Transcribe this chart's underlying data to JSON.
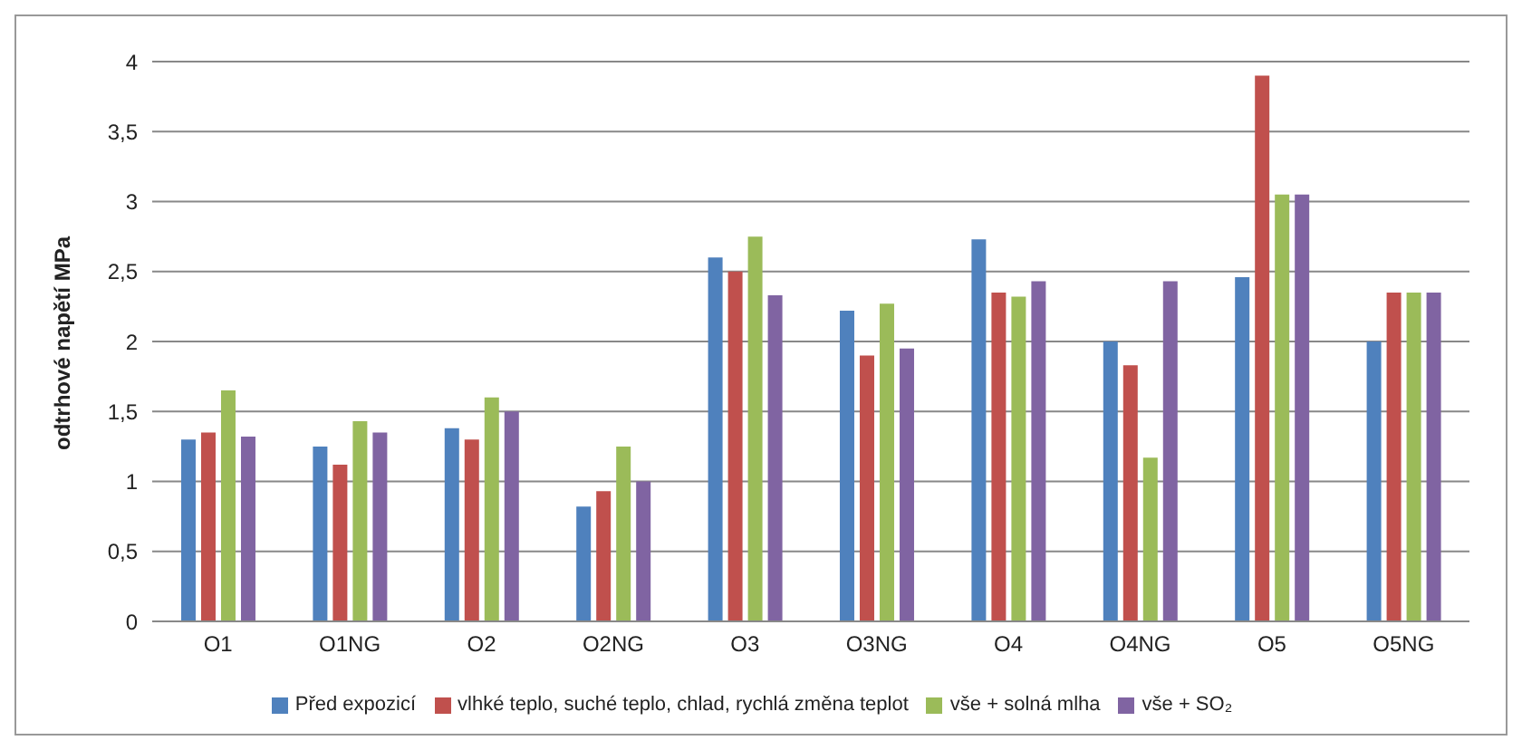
{
  "chart_data": {
    "type": "bar",
    "ylabel": "odtrhové napětí MPa",
    "categories": [
      "O1",
      "O1NG",
      "O2",
      "O2NG",
      "O3",
      "O3NG",
      "O4",
      "O4NG",
      "O5",
      "O5NG"
    ],
    "series": [
      {
        "name": "Před expozicí",
        "color": "#4f81bd",
        "values": [
          1.3,
          1.25,
          1.38,
          0.82,
          2.6,
          2.22,
          2.73,
          2.0,
          2.46,
          2.0
        ]
      },
      {
        "name": "vlhké teplo, suché teplo, chlad, rychlá změna teplot",
        "color": "#c0504d",
        "values": [
          1.35,
          1.12,
          1.3,
          0.93,
          2.5,
          1.9,
          2.35,
          1.83,
          3.9,
          2.35
        ]
      },
      {
        "name": "vše + solná mlha",
        "color": "#9bbb59",
        "values": [
          1.65,
          1.43,
          1.6,
          1.25,
          2.75,
          2.27,
          2.32,
          1.17,
          3.05,
          2.35
        ]
      },
      {
        "name": "vše + SO₂",
        "color": "#8064a2",
        "values": [
          1.32,
          1.35,
          1.5,
          1.0,
          2.33,
          1.95,
          2.43,
          2.43,
          3.05,
          2.35
        ]
      }
    ],
    "ylim": [
      0,
      4
    ],
    "yticks": [
      0,
      {
        "value": 0.5,
        "label": "0,5"
      },
      1,
      {
        "value": 1.5,
        "label": "1,5"
      },
      2,
      {
        "value": 2.5,
        "label": "2,5"
      },
      3,
      {
        "value": 3.5,
        "label": "3,5"
      },
      4
    ],
    "grid": "y",
    "legend": "bottom"
  }
}
